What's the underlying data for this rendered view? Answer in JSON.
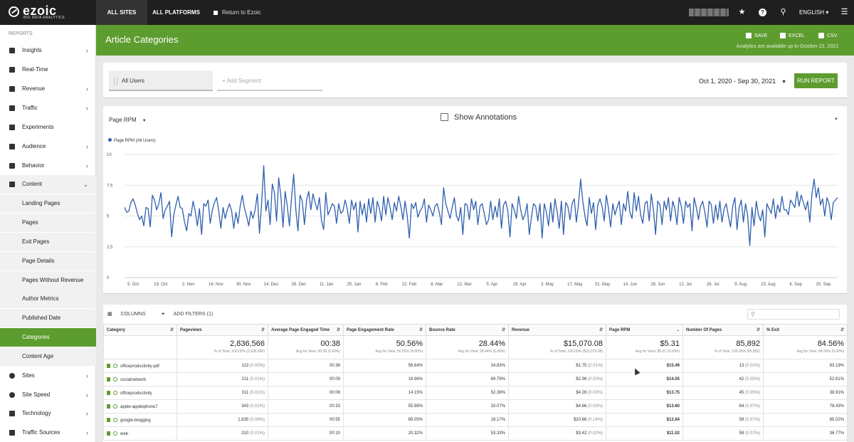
{
  "topbar": {
    "logo": "ezoic",
    "logo_sub": "BIG DATA ANALYTICS",
    "all_sites": "ALL SITES",
    "all_platforms": "ALL PLATFORMS",
    "return_link": "Return to Ezoic",
    "language": "ENGLISH",
    "icons": [
      "star-icon",
      "help-icon",
      "search-icon",
      "menu-icon"
    ]
  },
  "sidebar": {
    "section_label": "REPORTS",
    "items": [
      {
        "label": "Insights",
        "icon": "search-icon",
        "chevron": true
      },
      {
        "label": "Real-Time",
        "icon": "tag-icon",
        "chevron": false
      },
      {
        "label": "Revenue",
        "icon": "money-icon",
        "chevron": true
      },
      {
        "label": "Traffic",
        "icon": "traffic-icon",
        "chevron": true
      },
      {
        "label": "Experiments",
        "icon": "flask-icon",
        "chevron": false
      },
      {
        "label": "Audience",
        "icon": "users-icon",
        "chevron": true
      },
      {
        "label": "Behavior",
        "icon": "behavior-icon",
        "chevron": true
      },
      {
        "label": "Content",
        "icon": "content-icon",
        "chevron": true
      }
    ],
    "content_subitems": [
      "Landing Pages",
      "Pages",
      "Exit Pages",
      "Page Details",
      "Pages Without Revenue",
      "Author Metrics",
      "Published Date",
      "Categories",
      "Content Age"
    ],
    "bottom_items": [
      {
        "label": "Sites",
        "icon": "globe-icon"
      },
      {
        "label": "Site Speed",
        "icon": "speed-icon"
      },
      {
        "label": "Technology",
        "icon": "laptop-icon"
      },
      {
        "label": "Traffic Sources",
        "icon": "sources-icon"
      }
    ]
  },
  "header": {
    "title": "Article Categories",
    "save": "SAVE",
    "excel": "EXCEL",
    "csv": "CSV",
    "availability": "Analytics are available up to October 22, 2021"
  },
  "segments": {
    "active": "All Users",
    "add_placeholder": "+ Add Segment",
    "date_range": "Oct 1, 2020 - Sep 30, 2021",
    "run_button": "RUN REPORT"
  },
  "chart_controls": {
    "metric": "Page RPM",
    "annotations_label": "Show Annotations"
  },
  "chart_data": {
    "type": "line",
    "series": [
      {
        "name": "Page RPM (All Users)",
        "color": "#2f5fae"
      }
    ],
    "ylim": [
      0,
      10
    ],
    "yticks": [
      "10",
      "7.5",
      "5",
      "2.5",
      "0"
    ],
    "xticks": [
      "5. Oct",
      "19. Oct",
      "2. Nov",
      "16. Nov",
      "30. Nov",
      "14. Dec",
      "28. Dec",
      "11. Jan",
      "25. Jan",
      "8. Feb",
      "22. Feb",
      "8. Mar",
      "22. Mar",
      "5. Apr",
      "19. Apr",
      "3. May",
      "17. May",
      "31. May",
      "14. Jun",
      "28. Jun",
      "12. Jul",
      "26. Jul",
      "9. Aug",
      "23. Aug",
      "6. Sep",
      "20. Sep"
    ],
    "values": [
      5.7,
      5.3,
      5.4,
      6.1,
      6.4,
      5.9,
      5.2,
      4.7,
      5.0,
      4.2,
      5.7,
      5.6,
      4.1,
      6.7,
      6.3,
      5.5,
      6.0,
      6.9,
      4.8,
      5.5,
      5.8,
      6.2,
      3.3,
      5.1,
      5.9,
      6.6,
      5.7,
      5.6,
      4.5,
      3.8,
      5.2,
      5.0,
      6.2,
      5.4,
      4.2,
      5.6,
      3.5,
      6.0,
      5.8,
      6.3,
      4.4,
      5.5,
      6.1,
      6.5,
      5.4,
      4.0,
      5.7,
      4.8,
      5.5,
      6.0,
      5.4,
      4.0,
      5.3,
      4.4,
      5.8,
      6.7,
      5.6,
      5.0,
      4.2,
      5.4,
      4.8,
      5.5,
      6.8,
      3.6,
      6.0,
      9.1,
      5.4,
      6.3,
      4.3,
      7.6,
      6.9,
      4.6,
      8.1,
      6.6,
      4.1,
      7.0,
      5.8,
      4.2,
      6.5,
      8.4,
      5.5,
      3.8,
      6.7,
      6.2,
      4.3,
      6.3,
      7.0,
      5.5,
      6.8,
      6.1,
      5.5,
      6.5,
      4.6,
      3.9,
      6.9,
      5.1,
      5.5,
      6.0,
      5.8,
      4.4,
      6.0,
      5.2,
      5.4,
      6.3,
      5.6,
      4.4,
      6.3,
      5.5,
      6.1,
      3.7,
      6.2,
      5.1,
      6.0,
      4.5,
      6.4,
      5.2,
      6.5,
      4.5,
      6.2,
      5.6,
      4.6,
      6.6,
      5.1,
      6.5,
      5.7,
      4.7,
      6.1,
      5.4,
      6.6,
      5.8,
      4.7,
      6.2,
      5.0,
      3.2,
      6.0,
      5.6,
      6.1,
      4.9,
      5.4,
      5.7,
      6.4,
      4.5,
      5.9,
      5.5,
      5.0,
      5.8,
      6.0,
      5.3,
      4.3,
      7.3,
      6.0,
      5.4,
      4.8,
      5.7,
      6.5,
      5.0,
      4.6,
      5.7,
      3.5,
      6.0,
      5.9,
      4.7,
      6.4,
      5.5,
      6.2,
      4.3,
      5.8,
      6.0,
      5.2,
      4.3,
      4.7,
      6.2,
      4.7,
      5.8,
      4.9,
      6.4,
      4.0,
      5.9,
      6.2,
      5.4,
      3.3,
      6.0,
      5.5,
      4.8,
      6.6,
      5.5,
      4.7,
      5.1,
      6.0,
      3.5,
      4.9,
      6.0,
      5.8,
      4.6,
      6.0,
      3.2,
      6.0,
      5.3,
      4.2,
      6.1,
      4.5,
      6.4,
      5.4,
      4.0,
      6.2,
      3.5,
      6.1,
      5.8,
      4.7,
      6.0,
      6.4,
      4.5,
      6.0,
      8.0,
      6.2,
      5.0,
      4.2,
      6.5,
      5.2,
      6.1,
      3.9,
      5.9,
      6.4,
      5.8,
      4.6,
      6.7,
      5.6,
      4.1,
      6.0,
      5.1,
      5.7,
      6.2,
      4.3,
      6.0,
      5.4,
      7.0,
      5.3,
      4.8,
      6.9,
      5.4,
      6.6,
      5.1,
      4.4,
      6.0,
      6.2,
      4.6,
      6.8,
      5.5,
      3.5,
      6.2,
      5.9,
      4.3,
      6.2,
      5.5,
      6.5,
      4.6,
      6.2,
      5.6,
      4.3,
      6.5,
      5.8,
      4.4,
      6.2,
      5.7,
      6.0,
      3.8,
      6.5,
      5.7,
      4.7,
      5.8,
      6.2,
      5.3,
      4.1,
      6.2,
      5.9,
      4.4,
      5.9,
      4.7,
      6.2,
      4.5,
      5.6,
      6.0,
      5.0,
      4.1,
      5.8,
      6.5,
      3.9,
      5.7,
      6.3,
      4.5,
      6.0,
      5.0,
      2.6,
      5.7,
      4.2,
      6.2,
      5.1,
      4.6,
      5.5,
      3.3,
      6.0,
      5.6,
      5.2,
      6.4,
      4.8,
      5.9,
      5.3,
      6.6,
      5.5,
      5.5,
      5.1,
      6.3,
      6.0,
      5.7,
      7.0,
      5.8,
      6.7,
      6.1,
      5.5,
      6.2,
      4.5,
      6.8,
      8.0,
      6.5,
      7.3,
      5.9,
      6.4,
      5.0,
      6.5,
      6.0,
      4.7,
      6.1,
      6.3,
      6.5
    ]
  },
  "table": {
    "tools": {
      "columns": "COLUMNS",
      "filters": "ADD FILTERS (1)"
    },
    "headers": [
      "Category",
      "Pageviews",
      "Average Page Engaged Time",
      "Page Engagement Rate",
      "Bounce Rate",
      "Revenue",
      "Page RPM",
      "Number Of Pages",
      "% Exit"
    ],
    "totals": {
      "pageviews": "2,836,566",
      "pageviews_sub": "% of Total: 100.00% (2,836,566)",
      "engaged_time": "00:38",
      "engaged_time_sub": "Avg for View: 00:38 (0.00%)",
      "engagement_rate": "50.56%",
      "engagement_rate_sub": "Avg for View: 50.56% (0.00%)",
      "bounce": "28.44%",
      "bounce_sub": "Avg for View: 28.44% (0.00%)",
      "revenue": "$15,070.08",
      "revenue_sub": "% of Total: 100.00% ($15,070.08)",
      "rpm": "$5.31",
      "rpm_sub": "Avg for View: $5.31 (0.00%)",
      "pages": "85,892",
      "pages_sub": "% of Total: 100.00% (85,892)",
      "exit": "84.56%",
      "exit_sub": "Avg for View: 84.56% (0.00%)"
    },
    "rows": [
      {
        "category": "officeproductivity-pdf",
        "pageviews": "113",
        "pv_pct": "(0.00%)",
        "time": "00:38",
        "engage": "56.64%",
        "bounce": "34.83%",
        "revenue": "$1.75",
        "rev_pct": "(0.01%)",
        "rpm": "$15.49",
        "pages": "13",
        "pages_pct": "(0.02%)",
        "exit": "83.19%"
      },
      {
        "category": "socialnetwork",
        "pageviews": "211",
        "pv_pct": "(0.01%)",
        "time": "00:09",
        "engage": "18.96%",
        "bounce": "69.79%",
        "revenue": "$2.96",
        "rev_pct": "(0.02%)",
        "rpm": "$14.05",
        "pages": "42",
        "pages_pct": "(0.05%)",
        "exit": "52.61%"
      },
      {
        "category": "officeproductivity",
        "pageviews": "311",
        "pv_pct": "(0.01%)",
        "time": "00:06",
        "engage": "14.15%",
        "bounce": "52.38%",
        "revenue": "$4.28",
        "rev_pct": "(0.03%)",
        "rpm": "$13.75",
        "pages": "45",
        "pages_pct": "(0.05%)",
        "exit": "38.91%"
      },
      {
        "category": "apple-appleiphone7",
        "pageviews": "343",
        "pv_pct": "(0.01%)",
        "time": "00:33",
        "engage": "55.98%",
        "bounce": "33.07%",
        "revenue": "$4.66",
        "rev_pct": "(0.03%)",
        "rpm": "$13.60",
        "pages": "64",
        "pages_pct": "(0.07%)",
        "exit": "78.43%"
      },
      {
        "category": "google-blogging",
        "pageviews": "1,635",
        "pv_pct": "(0.06%)",
        "time": "00:55",
        "engage": "69.05%",
        "bounce": "18.17%",
        "revenue": "$20.66",
        "rev_pct": "(0.14%)",
        "rpm": "$12.64",
        "pages": "59",
        "pages_pct": "(0.07%)",
        "exit": "85.02%"
      },
      {
        "category": "web",
        "pageviews": "310",
        "pv_pct": "(0.01%)",
        "time": "00:10",
        "engage": "20.32%",
        "bounce": "53.33%",
        "revenue": "$3.42",
        "rev_pct": "(0.02%)",
        "rpm": "$11.02",
        "pages": "58",
        "pages_pct": "(0.07%)",
        "exit": "36.77%"
      }
    ]
  }
}
